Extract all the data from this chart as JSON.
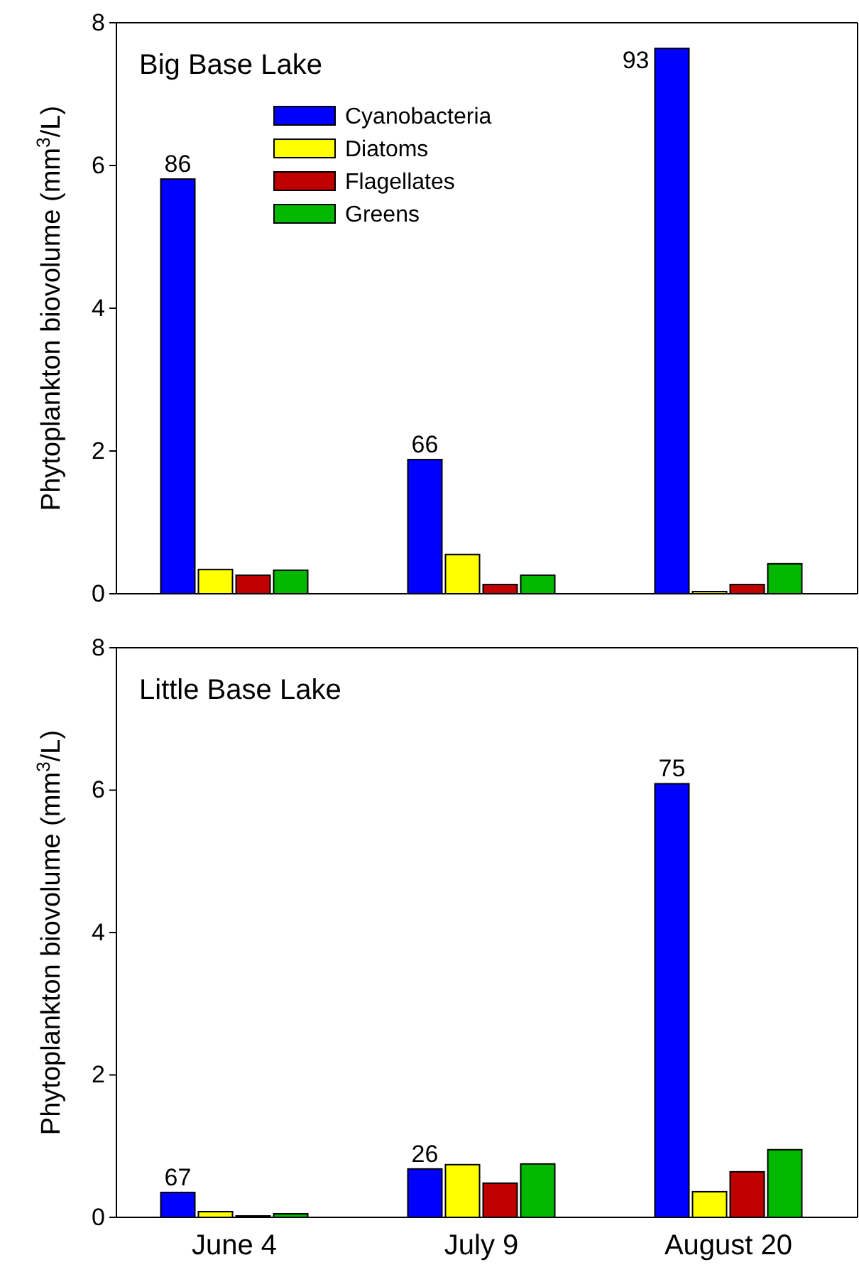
{
  "chart_data": [
    {
      "type": "bar",
      "title": "Big Base Lake",
      "ylabel": "Phytoplankton biovolume (mm$^{3}$/L)",
      "categories": [
        null,
        null,
        null
      ],
      "ylim": [
        0,
        8
      ],
      "yticks": [
        0,
        2,
        4,
        6,
        8
      ],
      "tick_labels": "y",
      "legend": "top",
      "grid": false,
      "series": [
        {
          "name": "Cyanobacteria",
          "color": "#0000ff",
          "values": [
            5.81,
            1.88,
            7.64
          ]
        },
        {
          "name": "Diatoms",
          "color": "#ffff00",
          "values": [
            0.34,
            0.55,
            0.03
          ]
        },
        {
          "name": "Flagellates",
          "color": "#c00000",
          "values": [
            0.26,
            0.13,
            0.13
          ]
        },
        {
          "name": "Greens",
          "color": "#00b800",
          "values": [
            0.33,
            0.26,
            0.42
          ]
        }
      ],
      "annotations": [
        "86",
        "66",
        "93"
      ]
    },
    {
      "type": "bar",
      "title": "Little Base Lake",
      "ylabel": "Phytoplankton biovolume (mm$^{3}$/L)",
      "categories": [
        "June 4",
        "July 9",
        "August 20"
      ],
      "ylim": [
        0,
        8
      ],
      "yticks": [
        0,
        2,
        4,
        6,
        8
      ],
      "grid": false,
      "series": [
        {
          "color": "#0000ff",
          "values": [
            0.35,
            0.68,
            6.09
          ]
        },
        {
          "color": "#ffff00",
          "values": [
            0.08,
            0.74,
            0.36
          ]
        },
        {
          "color": "#c00000",
          "values": [
            0.02,
            0.48,
            0.64
          ]
        },
        {
          "color": "#00b800",
          "values": [
            0.05,
            0.75,
            0.95
          ]
        }
      ],
      "annotations": [
        "67",
        "26",
        "75"
      ]
    }
  ]
}
